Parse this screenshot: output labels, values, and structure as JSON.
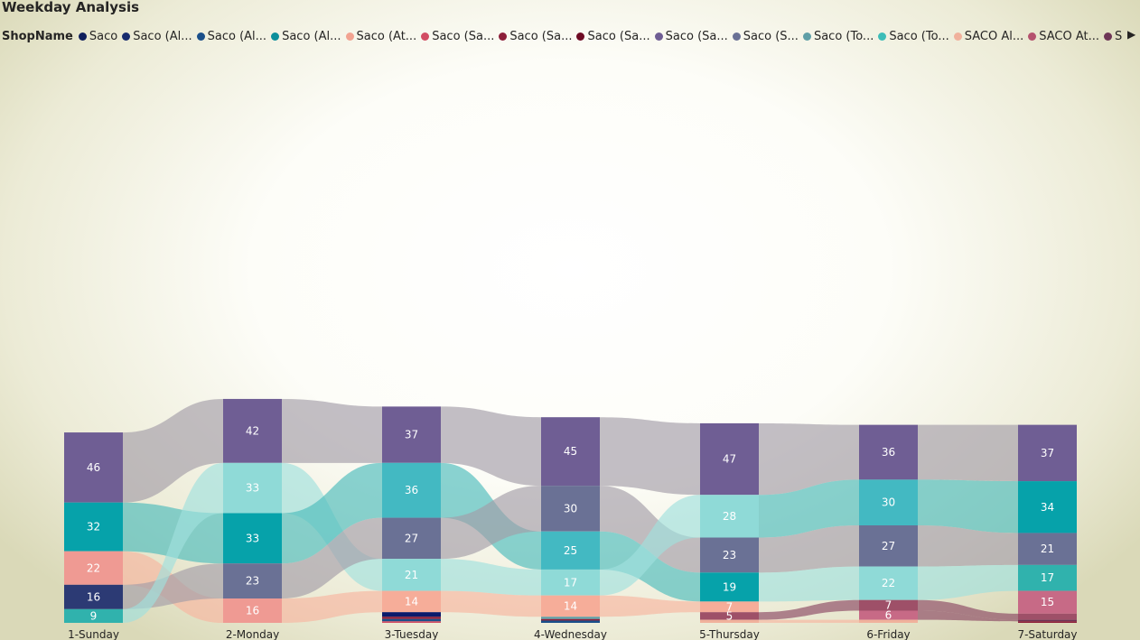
{
  "title": "Weekday Analysis",
  "legend": {
    "label": "ShopName",
    "items": [
      {
        "label": "Saco",
        "color": "#0f1f5c"
      },
      {
        "label": "Saco (Al...",
        "color": "#172b6e"
      },
      {
        "label": "Saco (Al...",
        "color": "#1a4f8a"
      },
      {
        "label": "Saco (Al...",
        "color": "#0c8f9c"
      },
      {
        "label": "Saco (At...",
        "color": "#f2a391"
      },
      {
        "label": "Saco (Sa...",
        "color": "#d24d63"
      },
      {
        "label": "Saco (Sa...",
        "color": "#8d1f3a"
      },
      {
        "label": "Saco (Sa...",
        "color": "#6e0b24"
      },
      {
        "label": "Saco (Sa...",
        "color": "#6f5e94"
      },
      {
        "label": "Saco (S...",
        "color": "#6a7195"
      },
      {
        "label": "Saco (To...",
        "color": "#5f9fa7"
      },
      {
        "label": "Saco (To...",
        "color": "#3dbdb8"
      },
      {
        "label": "SACO Al...",
        "color": "#f0b19c"
      },
      {
        "label": "SACO At...",
        "color": "#b5526e"
      },
      {
        "label": "SACO T...",
        "color": "#6d3555"
      }
    ],
    "more_icon": "scroll-right-arrow-icon"
  },
  "chart_data": {
    "type": "ribbon",
    "categories": [
      "1-Sunday",
      "2-Monday",
      "3-Tuesday",
      "4-Wednesday",
      "5-Thursday",
      "6-Friday",
      "7-Saturday"
    ],
    "colors": {
      "purple": "#6f5e94",
      "teal": "#06a2aa",
      "light_teal": "#8fdad7",
      "mid_teal": "#43b9c2",
      "slate": "#6a7195",
      "pink": "#ef9a93",
      "peach": "#f6ad99",
      "navy": "#2c3a74",
      "cyan": "#30b2ad",
      "wine": "#9e5068",
      "rose": "#c76a86",
      "flow_gray": "#a39da8",
      "flow_light": "#9fe0dd",
      "flow_teal": "#4cbcbc",
      "flow_peach": "#f8b6a0",
      "flow_wine": "#8a4662"
    },
    "columns": [
      {
        "category": "1-Sunday",
        "segments": [
          {
            "value": 46,
            "label": "46",
            "color": "purple"
          },
          {
            "value": 32,
            "label": "32",
            "color": "teal"
          },
          {
            "value": 22,
            "label": "22",
            "color": "pink"
          },
          {
            "value": 16,
            "label": "16",
            "color": "navy"
          },
          {
            "value": 9,
            "label": "9",
            "color": "cyan"
          }
        ]
      },
      {
        "category": "2-Monday",
        "segments": [
          {
            "value": 42,
            "label": "42",
            "color": "purple"
          },
          {
            "value": 33,
            "label": "33",
            "color": "light_teal"
          },
          {
            "value": 33,
            "label": "33",
            "color": "teal"
          },
          {
            "value": 23,
            "label": "23",
            "color": "slate"
          },
          {
            "value": 16,
            "label": "16",
            "color": "pink"
          }
        ]
      },
      {
        "category": "3-Tuesday",
        "segments": [
          {
            "value": 37,
            "label": "37",
            "color": "purple"
          },
          {
            "value": 36,
            "label": "36",
            "color": "mid_teal"
          },
          {
            "value": 27,
            "label": "27",
            "color": "slate"
          },
          {
            "value": 21,
            "label": "21",
            "color": "light_teal"
          },
          {
            "value": 14,
            "label": "14",
            "color": "peach"
          },
          {
            "value": 3,
            "label": "",
            "color": "#0a1a6b"
          },
          {
            "value": 1.5,
            "label": "",
            "color": "#8d1f3a"
          },
          {
            "value": 1.5,
            "label": "",
            "color": "#1a4f8a"
          },
          {
            "value": 1,
            "label": "",
            "color": "#d24d63"
          }
        ]
      },
      {
        "category": "4-Wednesday",
        "segments": [
          {
            "value": 45,
            "label": "45",
            "color": "purple"
          },
          {
            "value": 30,
            "label": "30",
            "color": "slate"
          },
          {
            "value": 25,
            "label": "25",
            "color": "mid_teal"
          },
          {
            "value": 17,
            "label": "17",
            "color": "light_teal"
          },
          {
            "value": 14,
            "label": "14",
            "color": "peach"
          },
          {
            "value": 1.5,
            "label": "",
            "color": "#5f9fa7"
          },
          {
            "value": 1,
            "label": "",
            "color": "#8d1f3a"
          },
          {
            "value": 1.5,
            "label": "",
            "color": "#1a4f8a"
          }
        ]
      },
      {
        "category": "5-Thursday",
        "segments": [
          {
            "value": 47,
            "label": "47",
            "color": "purple"
          },
          {
            "value": 28,
            "label": "28",
            "color": "light_teal"
          },
          {
            "value": 23,
            "label": "23",
            "color": "slate"
          },
          {
            "value": 19,
            "label": "19",
            "color": "teal"
          },
          {
            "value": 7,
            "label": "7",
            "color": "peach"
          },
          {
            "value": 5,
            "label": "5",
            "color": "wine"
          },
          {
            "value": 2,
            "label": "",
            "color": "#f0b19c"
          }
        ]
      },
      {
        "category": "6-Friday",
        "segments": [
          {
            "value": 36,
            "label": "36",
            "color": "purple"
          },
          {
            "value": 30,
            "label": "30",
            "color": "mid_teal"
          },
          {
            "value": 27,
            "label": "27",
            "color": "slate"
          },
          {
            "value": 22,
            "label": "22",
            "color": "light_teal"
          },
          {
            "value": 7,
            "label": "7",
            "color": "wine"
          },
          {
            "value": 6,
            "label": "6",
            "color": "rose"
          },
          {
            "value": 2,
            "label": "",
            "color": "#f0b19c"
          }
        ]
      },
      {
        "category": "7-Saturday",
        "segments": [
          {
            "value": 37,
            "label": "37",
            "color": "purple"
          },
          {
            "value": 34,
            "label": "34",
            "color": "teal"
          },
          {
            "value": 21,
            "label": "21",
            "color": "slate"
          },
          {
            "value": 17,
            "label": "17",
            "color": "cyan"
          },
          {
            "value": 15,
            "label": "15",
            "color": "rose"
          },
          {
            "value": 4,
            "label": "",
            "color": "wine"
          },
          {
            "value": 1,
            "label": "",
            "color": "#6d3555"
          },
          {
            "value": 1,
            "label": "",
            "color": "#8d1f3a"
          }
        ]
      }
    ],
    "flows": [
      [
        {
          "from": 0,
          "to": 0,
          "color": "flow_gray"
        },
        {
          "from": 1,
          "to": 2,
          "color": "flow_teal"
        },
        {
          "from": 2,
          "to": 4,
          "color": "flow_peach"
        },
        {
          "from": 3,
          "to": 3,
          "color": "flow_gray"
        },
        {
          "from": 4,
          "to": 1,
          "color": "flow_light"
        }
      ],
      [
        {
          "from": 0,
          "to": 0,
          "color": "flow_gray"
        },
        {
          "from": 1,
          "to": 3,
          "color": "flow_light"
        },
        {
          "from": 2,
          "to": 1,
          "color": "flow_teal"
        },
        {
          "from": 3,
          "to": 2,
          "color": "flow_gray"
        },
        {
          "from": 4,
          "to": 4,
          "color": "flow_peach"
        }
      ],
      [
        {
          "from": 0,
          "to": 0,
          "color": "flow_gray"
        },
        {
          "from": 1,
          "to": 2,
          "color": "flow_teal"
        },
        {
          "from": 2,
          "to": 1,
          "color": "flow_gray"
        },
        {
          "from": 3,
          "to": 3,
          "color": "flow_light"
        },
        {
          "from": 4,
          "to": 4,
          "color": "flow_peach"
        }
      ],
      [
        {
          "from": 0,
          "to": 0,
          "color": "flow_gray"
        },
        {
          "from": 1,
          "to": 2,
          "color": "flow_gray"
        },
        {
          "from": 2,
          "to": 3,
          "color": "flow_teal"
        },
        {
          "from": 3,
          "to": 1,
          "color": "flow_light"
        },
        {
          "from": 4,
          "to": 4,
          "color": "flow_peach"
        }
      ],
      [
        {
          "from": 0,
          "to": 0,
          "color": "flow_gray"
        },
        {
          "from": 1,
          "to": 1,
          "color": "flow_teal"
        },
        {
          "from": 2,
          "to": 2,
          "color": "flow_gray"
        },
        {
          "from": 3,
          "to": 3,
          "color": "flow_light"
        },
        {
          "from": 5,
          "to": 4,
          "color": "flow_wine"
        },
        {
          "from": 6,
          "to": 6,
          "color": "flow_peach"
        }
      ],
      [
        {
          "from": 0,
          "to": 0,
          "color": "flow_gray"
        },
        {
          "from": 1,
          "to": 1,
          "color": "flow_teal"
        },
        {
          "from": 2,
          "to": 2,
          "color": "flow_gray"
        },
        {
          "from": 3,
          "to": 3,
          "color": "flow_light"
        },
        {
          "from": 4,
          "to": 5,
          "color": "flow_wine"
        },
        {
          "from": 5,
          "to": 6,
          "color": "flow_wine"
        }
      ]
    ]
  }
}
